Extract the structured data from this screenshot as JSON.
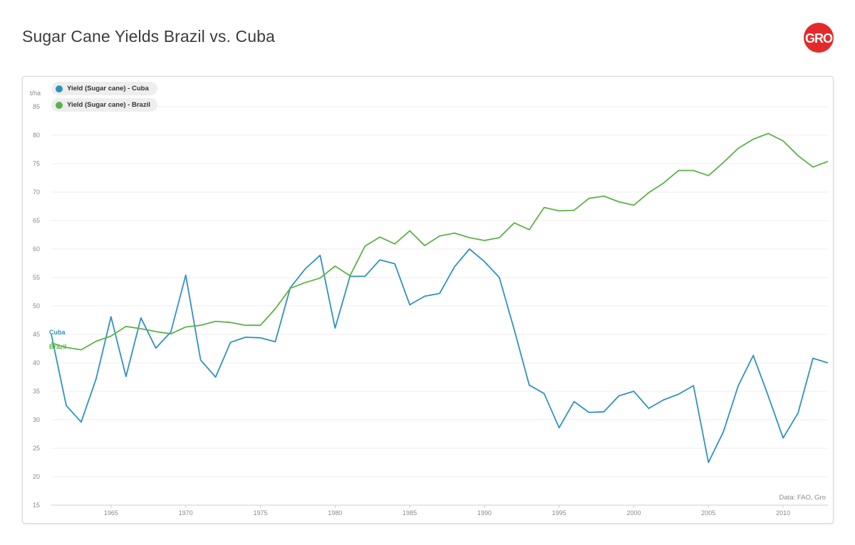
{
  "title": "Sugar Cane Yields Brazil vs. Cuba",
  "logo_text": "GRO",
  "source": "Data: FAO, Gro",
  "colors": {
    "cuba": "#2f91c1",
    "brazil": "#5cb247",
    "logo": "#e32a2a"
  },
  "chart_data": {
    "type": "line",
    "ylabel": "t/ha",
    "ylim": [
      15,
      85
    ],
    "yticks": [
      15,
      20,
      25,
      30,
      35,
      40,
      45,
      50,
      55,
      60,
      65,
      70,
      75,
      80,
      85
    ],
    "xlim": [
      1961,
      2013
    ],
    "xticks": [
      1965,
      1970,
      1975,
      1980,
      1985,
      1990,
      1995,
      2000,
      2005,
      2010
    ],
    "grid": true,
    "legend_position": "top-left",
    "x": [
      1961,
      1962,
      1963,
      1964,
      1965,
      1966,
      1967,
      1968,
      1969,
      1970,
      1971,
      1972,
      1973,
      1974,
      1975,
      1976,
      1977,
      1978,
      1979,
      1980,
      1981,
      1982,
      1983,
      1984,
      1985,
      1986,
      1987,
      1988,
      1989,
      1990,
      1991,
      1992,
      1993,
      1994,
      1995,
      1996,
      1997,
      1998,
      1999,
      2000,
      2001,
      2002,
      2003,
      2004,
      2005,
      2006,
      2007,
      2008,
      2009,
      2010,
      2011,
      2012,
      2013
    ],
    "series": [
      {
        "name": "Yield (Sugar cane) - Cuba",
        "end_label": "Cuba",
        "values": [
          45.0,
          32.5,
          29.6,
          37.2,
          48.1,
          37.6,
          47.9,
          42.6,
          45.4,
          55.4,
          40.5,
          37.5,
          43.6,
          44.5,
          44.4,
          43.7,
          53.2,
          56.5,
          58.9,
          46.1,
          55.2,
          55.2,
          58.1,
          57.4,
          50.2,
          51.7,
          52.2,
          56.9,
          60.0,
          57.8,
          55.0,
          45.8,
          36.1,
          34.6,
          28.6,
          33.2,
          31.3,
          31.4,
          34.2,
          35.0,
          32.0,
          33.5,
          34.5,
          36.0,
          22.5,
          27.9,
          36.0,
          41.3,
          34.2,
          26.8,
          31.2,
          40.8,
          40.0
        ]
      },
      {
        "name": "Yield (Sugar cane) - Brazil",
        "end_label": "Brazil",
        "values": [
          43.5,
          42.7,
          42.3,
          43.8,
          44.7,
          46.4,
          46.0,
          45.5,
          45.1,
          46.3,
          46.6,
          47.3,
          47.1,
          46.6,
          46.6,
          49.5,
          53.1,
          54.1,
          54.9,
          57.0,
          55.3,
          60.5,
          62.1,
          60.9,
          63.2,
          60.6,
          62.3,
          62.8,
          62.0,
          61.5,
          62.0,
          64.6,
          63.4,
          67.3,
          66.7,
          66.8,
          68.9,
          69.3,
          68.3,
          67.7,
          69.9,
          71.6,
          73.8,
          73.8,
          72.9,
          75.2,
          77.7,
          79.3,
          80.3,
          79.0,
          76.4,
          74.4,
          75.4
        ]
      }
    ]
  }
}
